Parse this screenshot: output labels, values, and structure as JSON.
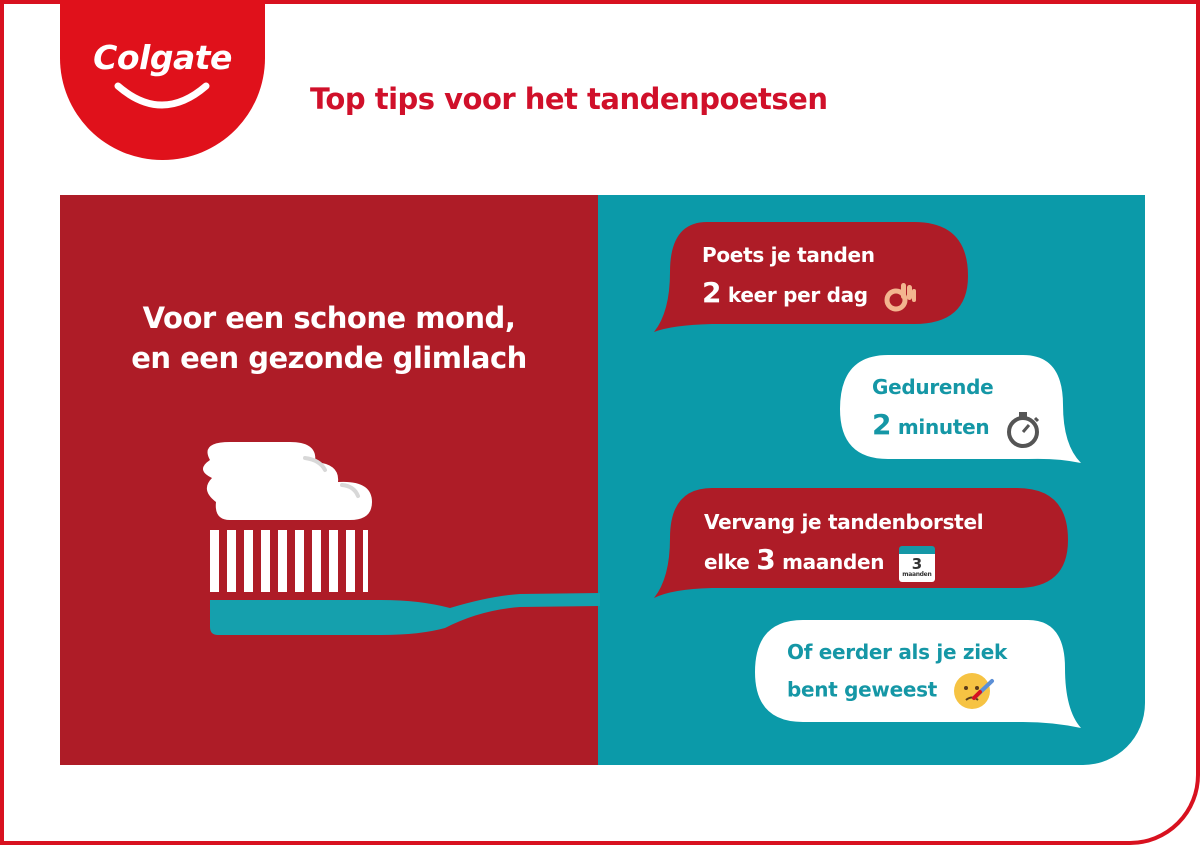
{
  "brand": {
    "logo_text": "Colgate",
    "color": "#e0111b"
  },
  "title": "Top tips voor het tandenpoetsen",
  "slogan": {
    "line1": "Voor een schone mond,",
    "line2": "en een gezonde glimlach"
  },
  "colors": {
    "red_panel": "#ae1c27",
    "teal_panel": "#0b9aa9",
    "title_red": "#d0102a"
  },
  "tips": [
    {
      "line1": "Poets je tanden",
      "num": "2",
      "line2_rest": "keer per dag",
      "icon": "ok-hand-icon"
    },
    {
      "line1": "Gedurende",
      "num": "2",
      "line2_rest": "minuten",
      "icon": "stopwatch-icon"
    },
    {
      "line1": "Vervang je tandenborstel",
      "line2_pre": "elke",
      "num": "3",
      "line2_rest": "maanden",
      "icon": "calendar-icon",
      "icon_num": "3",
      "icon_label": "maanden"
    },
    {
      "line1": "Of eerder als je ziek",
      "line2_rest": "bent geweest",
      "icon": "sick-face-icon"
    }
  ]
}
